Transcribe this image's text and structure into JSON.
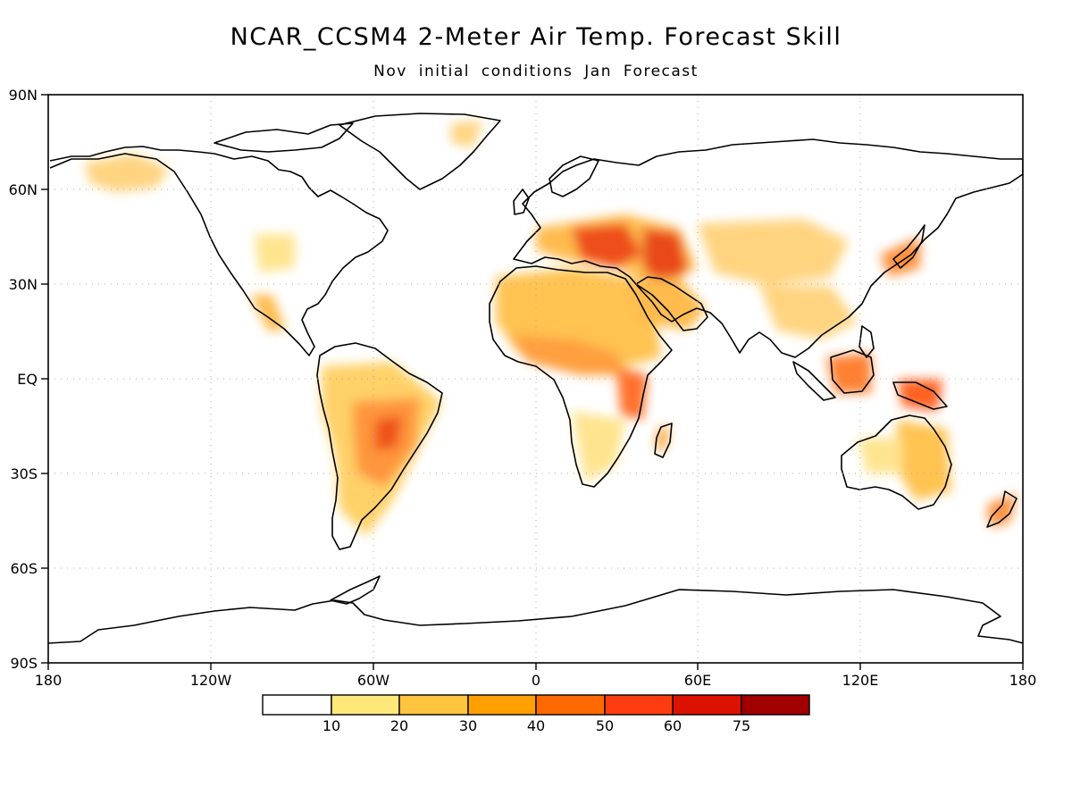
{
  "title": "NCAR_CCSM4 2-Meter Air Temp. Forecast Skill",
  "subtitle": "Nov initial conditions  Jan Forecast",
  "lon_ticks": [
    "180",
    "120W",
    "60W",
    "0",
    "60E",
    "120E",
    "180"
  ],
  "lat_ticks": [
    "90N",
    "60N",
    "30N",
    "EQ",
    "30S",
    "60S",
    "90S"
  ],
  "colorbar": {
    "colors": [
      "#ffffff",
      "#ffe87a",
      "#ffc440",
      "#ffa000",
      "#ff6a00",
      "#ff3c0f",
      "#dc1200",
      "#a00000"
    ],
    "labels": [
      "10",
      "20",
      "30",
      "40",
      "50",
      "60",
      "75"
    ]
  },
  "colors": {
    "land_outline": "#000000",
    "grid": "#aaaaaa"
  }
}
